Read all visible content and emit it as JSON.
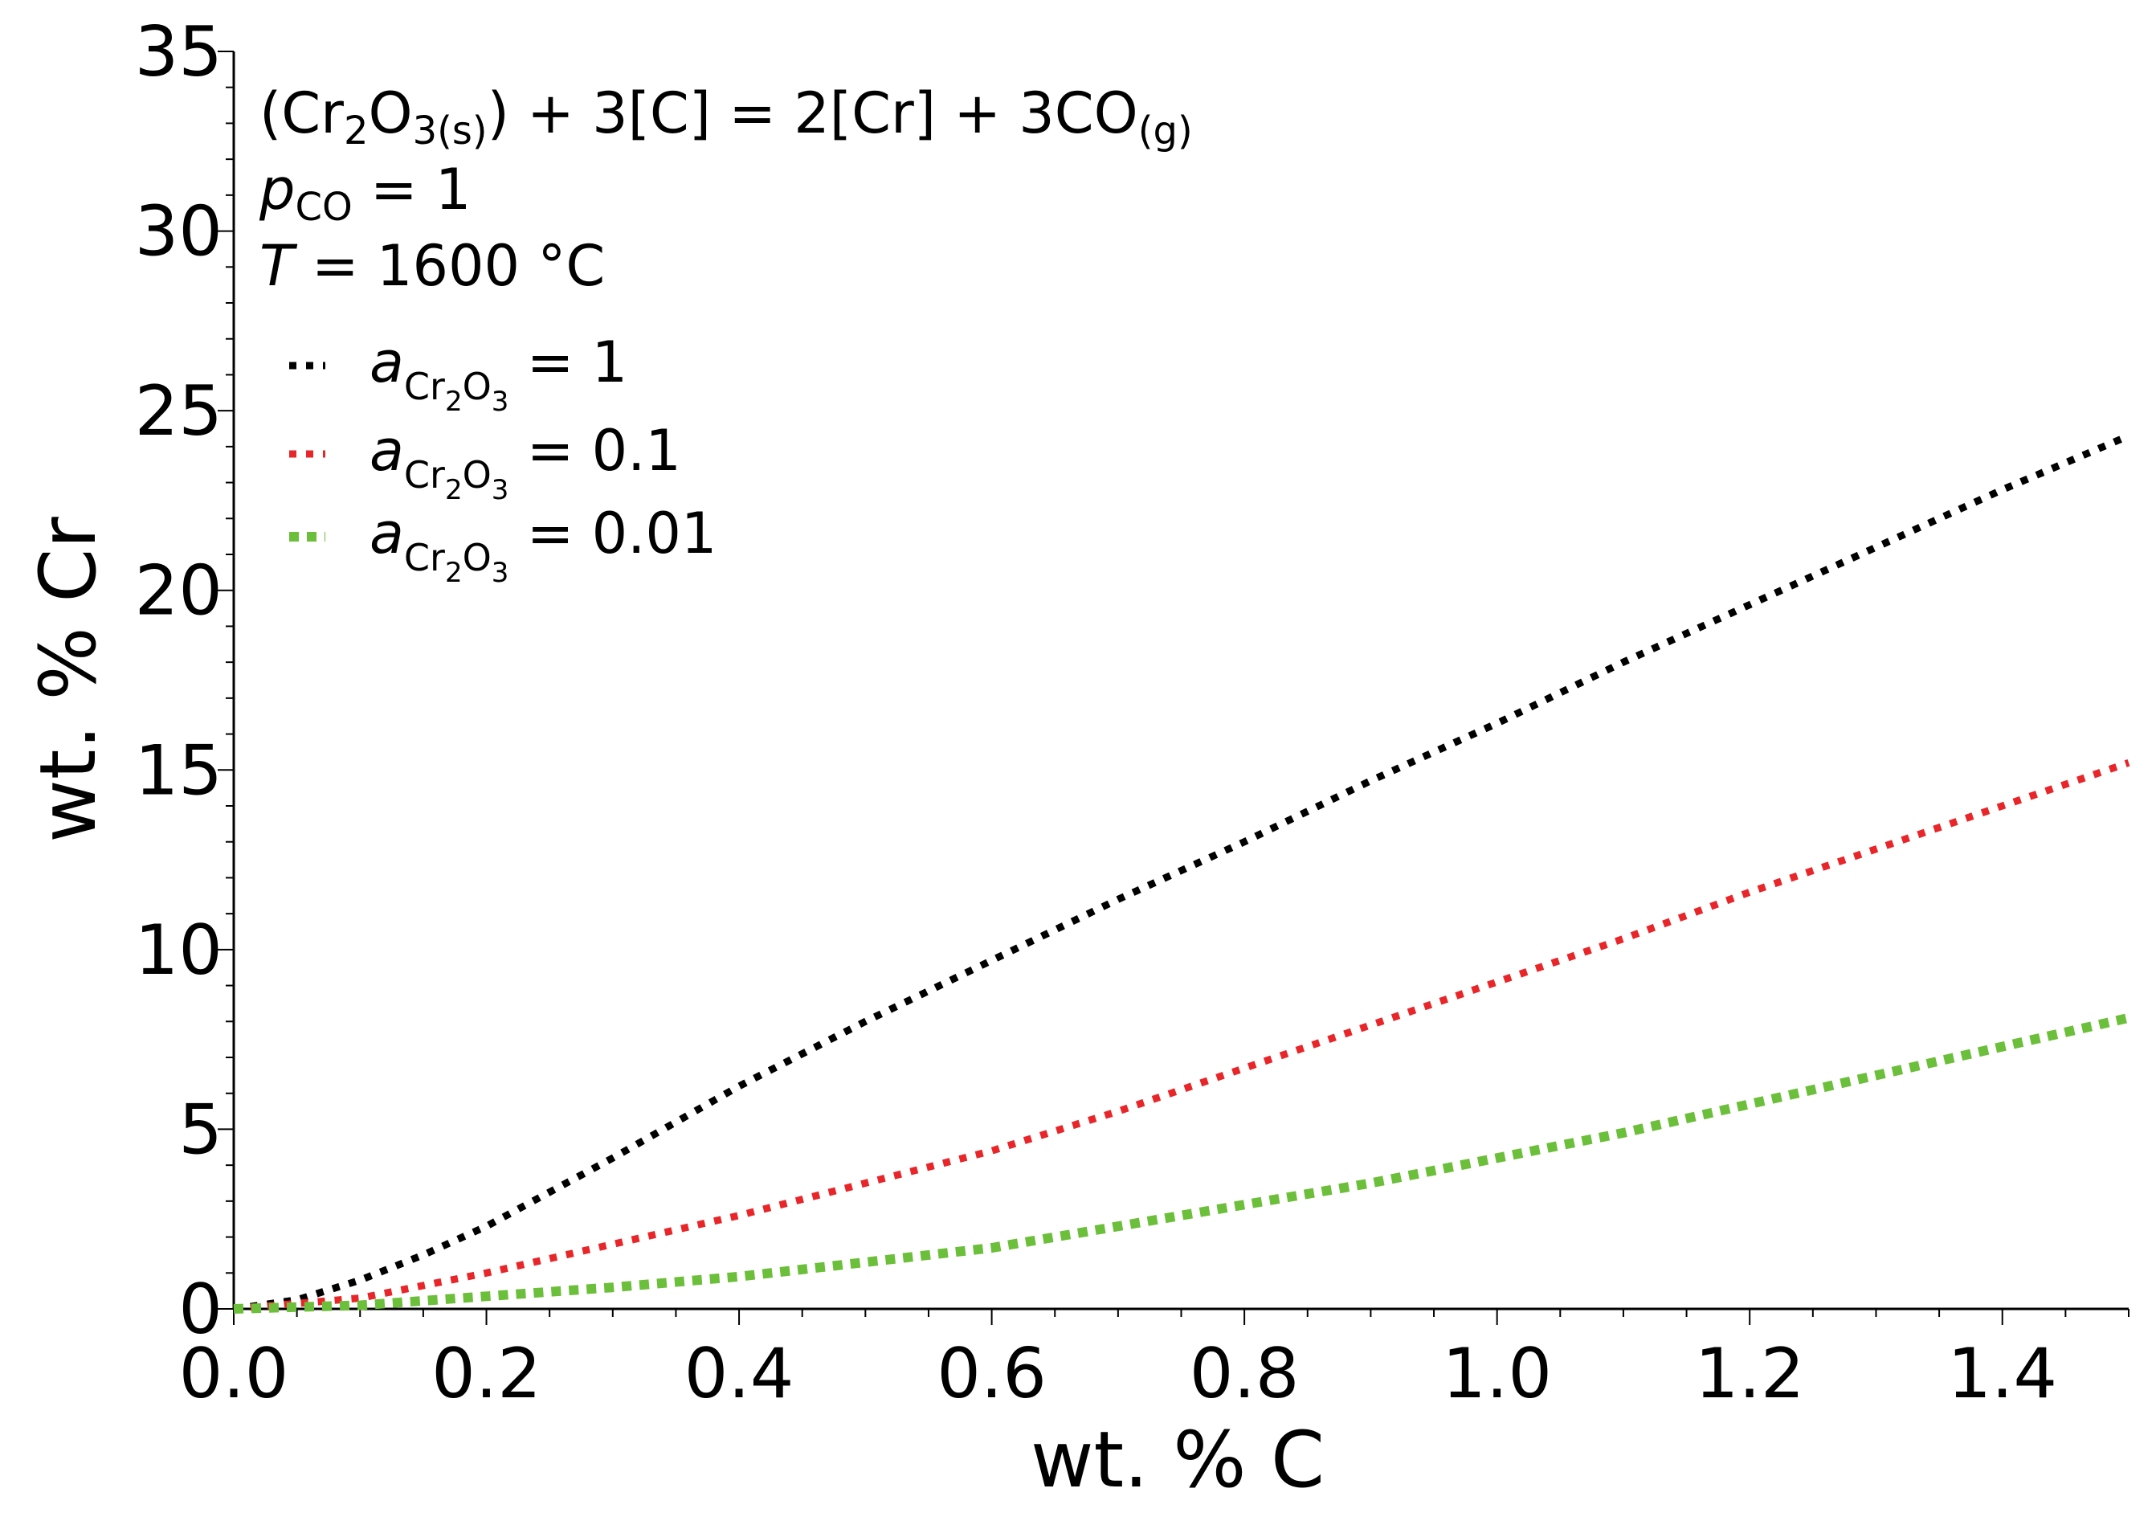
{
  "chart_data": {
    "type": "line",
    "title": "",
    "xlabel": "wt. % C",
    "ylabel": "wt. % Cr",
    "xlim": [
      0,
      1.5
    ],
    "ylim": [
      0,
      35
    ],
    "x_ticks": [
      "0.0",
      "0.2",
      "0.4",
      "0.6",
      "0.8",
      "1.0",
      "1.2",
      "1.4"
    ],
    "y_ticks": [
      "0",
      "5",
      "10",
      "15",
      "20",
      "25",
      "30",
      "35"
    ],
    "grid": false,
    "legend_position": "top-left",
    "annotations": {
      "reaction": "(Cr2O3(s)) + 3[C] = 2[Cr] + 3CO(g)",
      "pressure": "pCO = 1",
      "temperature": "T = 1600 °C"
    },
    "series": [
      {
        "name": "aCr2O3 = 1",
        "color": "#000000",
        "line_style": "dotted",
        "x": [
          0.0,
          0.05,
          0.1,
          0.15,
          0.2,
          0.3,
          0.4,
          0.5,
          0.6,
          0.7,
          0.8,
          0.9,
          1.0,
          1.1,
          1.2,
          1.3,
          1.4,
          1.5
        ],
        "y": [
          0.0,
          0.25,
          0.8,
          1.5,
          2.3,
          4.2,
          6.2,
          8.0,
          9.7,
          11.4,
          13.0,
          14.7,
          16.3,
          18.0,
          19.6,
          21.2,
          22.8,
          24.3
        ]
      },
      {
        "name": "aCr2O3 = 0.1",
        "color": "#e8262a",
        "line_style": "dotted",
        "x": [
          0.0,
          0.1,
          0.2,
          0.3,
          0.4,
          0.5,
          0.6,
          0.7,
          0.8,
          0.9,
          1.0,
          1.1,
          1.2,
          1.3,
          1.4,
          1.5
        ],
        "y": [
          0.0,
          0.3,
          1.0,
          1.8,
          2.6,
          3.5,
          4.4,
          5.5,
          6.7,
          7.9,
          9.1,
          10.3,
          11.6,
          12.8,
          14.0,
          15.2
        ]
      },
      {
        "name": "aCr2O3 = 0.01",
        "color": "#6cbf3a",
        "line_style": "dotted",
        "x": [
          0.0,
          0.1,
          0.2,
          0.3,
          0.4,
          0.5,
          0.6,
          0.7,
          0.8,
          0.9,
          1.0,
          1.1,
          1.2,
          1.3,
          1.4,
          1.5
        ],
        "y": [
          0.0,
          0.1,
          0.35,
          0.6,
          0.9,
          1.3,
          1.7,
          2.3,
          2.9,
          3.5,
          4.2,
          4.9,
          5.7,
          6.5,
          7.3,
          8.1
        ]
      }
    ]
  }
}
